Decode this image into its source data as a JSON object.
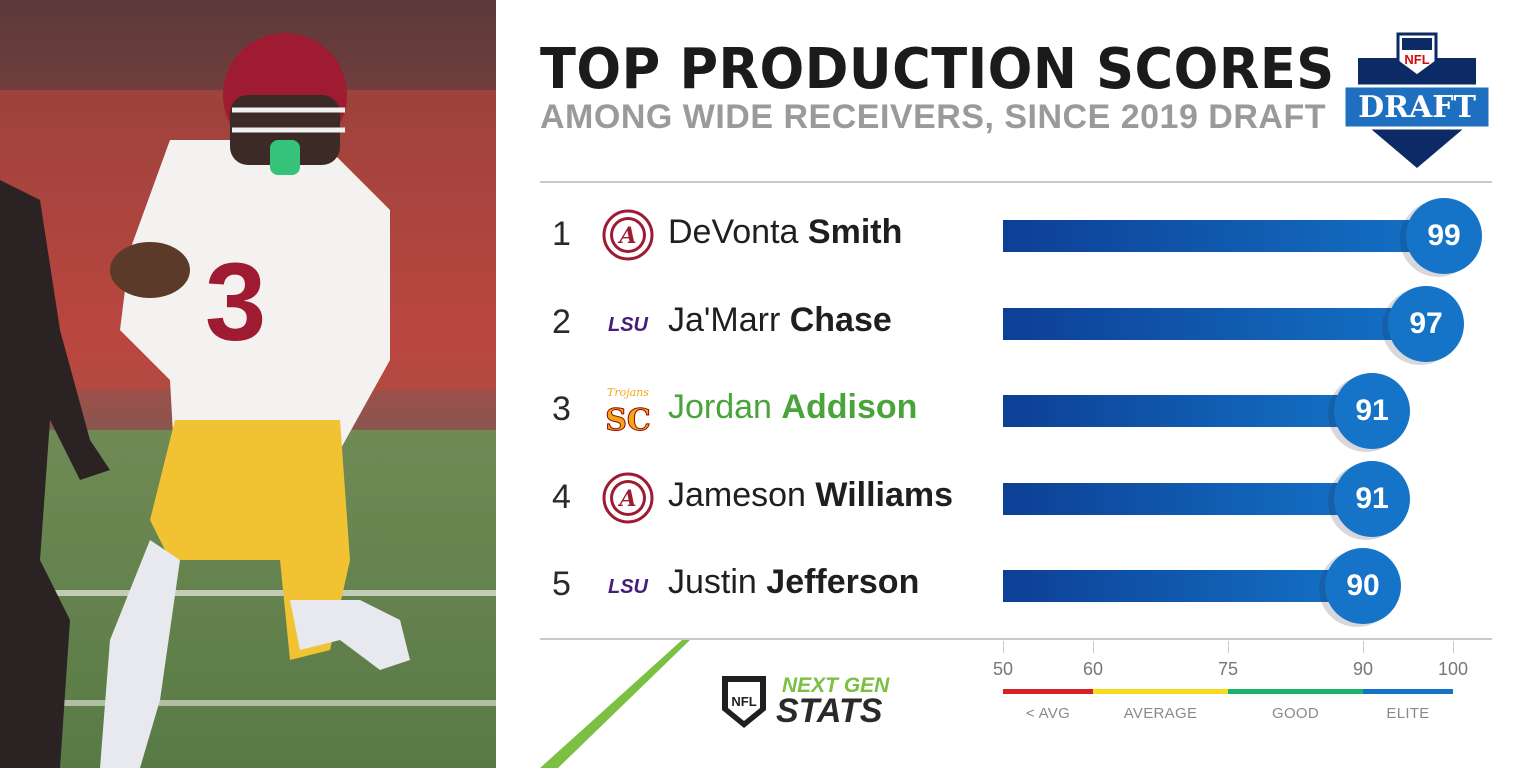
{
  "header": {
    "title": "TOP PRODUCTION SCORES",
    "subtitle": "AMONG WIDE RECEIVERS, SINCE 2019 DRAFT",
    "draft_logo_text": "DRAFT",
    "draft_logo_top": "NFL"
  },
  "photo": {
    "jersey_number": "3"
  },
  "chart_data": {
    "type": "bar",
    "orientation": "horizontal",
    "title": "TOP PRODUCTION SCORES",
    "subtitle": "AMONG WIDE RECEIVERS, SINCE 2019 DRAFT",
    "xlim": [
      50,
      100
    ],
    "categories": [
      "DeVonta Smith",
      "Ja'Marr Chase",
      "Jordan Addison",
      "Jameson Williams",
      "Justin Jefferson"
    ],
    "rows": [
      {
        "rank": "1",
        "first": "DeVonta",
        "last": "Smith",
        "school": "Alabama",
        "value": 99,
        "highlight": false
      },
      {
        "rank": "2",
        "first": "Ja'Marr",
        "last": "Chase",
        "school": "LSU",
        "value": 97,
        "highlight": false
      },
      {
        "rank": "3",
        "first": "Jordan",
        "last": "Addison",
        "school": "USC",
        "value": 91,
        "highlight": true
      },
      {
        "rank": "4",
        "first": "Jameson",
        "last": "Williams",
        "school": "Alabama",
        "value": 91,
        "highlight": false
      },
      {
        "rank": "5",
        "first": "Justin",
        "last": "Jefferson",
        "school": "LSU",
        "value": 90,
        "highlight": false
      }
    ],
    "scale": {
      "ticks": [
        50,
        60,
        75,
        90,
        100
      ],
      "bands": [
        {
          "from": 50,
          "to": 60,
          "label": "< AVG",
          "color": "#d71f26"
        },
        {
          "from": 60,
          "to": 75,
          "label": "AVERAGE",
          "color": "#f5dd1e"
        },
        {
          "from": 75,
          "to": 90,
          "label": "GOOD",
          "color": "#19b46a"
        },
        {
          "from": 90,
          "to": 100,
          "label": "ELITE",
          "color": "#1574c8"
        }
      ]
    }
  },
  "school_logos": {
    "Alabama": {
      "letter": "A",
      "color": "#9e1b32"
    },
    "LSU": {
      "text": "LSU",
      "color": "#461d7c"
    },
    "USC": {
      "script": "Trojans",
      "mono": "SC",
      "color": "#f1a817",
      "accent": "#990000"
    }
  },
  "footer": {
    "brand_line1": "NEXT GEN",
    "brand_line2": "STATS",
    "shield_text": "NFL"
  },
  "colors": {
    "bar_start": "#0d3f95",
    "bar_end": "#1370c4",
    "value_circle": "#1574c8",
    "highlight_name": "#4aa43b",
    "accent_green": "#7bc043"
  }
}
